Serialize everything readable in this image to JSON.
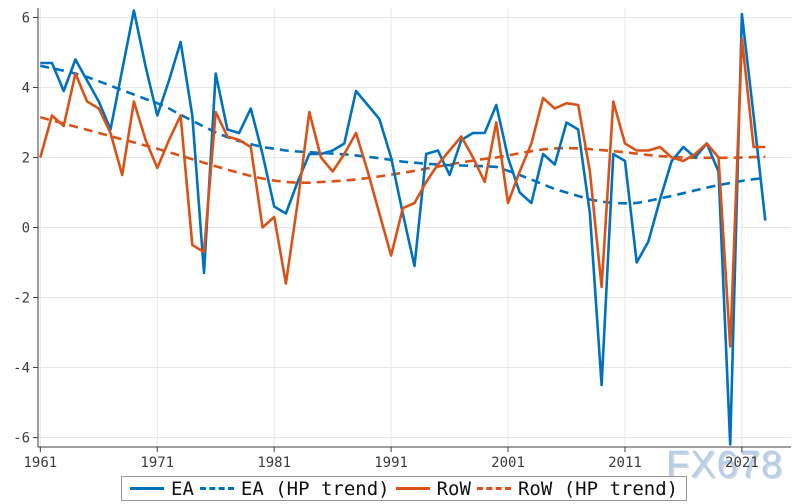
{
  "watermark": {
    "text": "FX678"
  },
  "legend": {
    "items": [
      {
        "label": "EA",
        "style": "solid",
        "color": "#0072BD"
      },
      {
        "label": "EA (HP trend)",
        "style": "dashed",
        "color": "#0072BD"
      },
      {
        "label": "RoW",
        "style": "solid",
        "color": "#D95319"
      },
      {
        "label": "RoW (HP trend)",
        "style": "dashed",
        "color": "#D95319"
      }
    ]
  },
  "colors": {
    "background": "#ffffff",
    "axis": "#3c3c3c",
    "grid": "#e7e7e7",
    "tick_text": "#3c3c3c",
    "legend_border": "#999999",
    "legend_text": "#111111",
    "ea_blue": "#0072BD",
    "row_orange": "#D95319",
    "watermark": "#b9cee6"
  },
  "chart_data": {
    "type": "line",
    "title": "",
    "xlabel": "",
    "ylabel": "",
    "grid": true,
    "legend_position": "bottom",
    "xlim": [
      1960.8,
      2025.2
    ],
    "ylim": [
      -6.27,
      6.27
    ],
    "x_ticks": [
      1961,
      1971,
      1981,
      1991,
      2001,
      2011,
      2021
    ],
    "y_ticks": [
      -6,
      -4,
      -2,
      0,
      2,
      4,
      6
    ],
    "x": [
      1961,
      1962,
      1963,
      1964,
      1965,
      1966,
      1967,
      1968,
      1969,
      1970,
      1971,
      1972,
      1973,
      1974,
      1975,
      1976,
      1977,
      1978,
      1979,
      1980,
      1981,
      1982,
      1983,
      1984,
      1985,
      1986,
      1987,
      1988,
      1989,
      1990,
      1991,
      1992,
      1993,
      1994,
      1995,
      1996,
      1997,
      1998,
      1999,
      2000,
      2001,
      2002,
      2003,
      2004,
      2005,
      2006,
      2007,
      2008,
      2009,
      2010,
      2011,
      2012,
      2013,
      2014,
      2015,
      2016,
      2017,
      2018,
      2019,
      2020,
      2021,
      2022,
      2023
    ],
    "series": [
      {
        "name": "EA",
        "color": "#0072BD",
        "dash": false,
        "values": [
          4.7,
          4.7,
          3.9,
          4.8,
          4.2,
          3.6,
          2.8,
          4.5,
          6.2,
          4.6,
          3.2,
          4.2,
          5.3,
          3.2,
          -1.3,
          4.4,
          2.8,
          2.7,
          3.4,
          2.1,
          0.6,
          0.4,
          1.3,
          2.1,
          2.1,
          2.2,
          2.4,
          3.9,
          3.5,
          3.1,
          2.0,
          0.4,
          -1.1,
          2.1,
          2.2,
          1.5,
          2.5,
          2.7,
          2.7,
          3.5,
          2.0,
          1.0,
          0.7,
          2.1,
          1.8,
          3.0,
          2.8,
          0.4,
          -4.5,
          2.1,
          1.9,
          -1.0,
          -0.4,
          0.8,
          1.9,
          2.3,
          2.0,
          2.4,
          1.6,
          -6.2,
          6.1,
          3.2,
          0.2
        ]
      },
      {
        "name": "EA (HP trend)",
        "color": "#0072BD",
        "dash": true,
        "values": [
          4.62,
          4.55,
          4.48,
          4.4,
          4.3,
          4.18,
          4.05,
          3.92,
          3.8,
          3.67,
          3.55,
          3.4,
          3.22,
          3.05,
          2.88,
          2.72,
          2.58,
          2.47,
          2.38,
          2.3,
          2.25,
          2.2,
          2.17,
          2.15,
          2.13,
          2.11,
          2.09,
          2.06,
          2.02,
          1.98,
          1.93,
          1.88,
          1.85,
          1.82,
          1.8,
          1.78,
          1.77,
          1.76,
          1.75,
          1.73,
          1.62,
          1.5,
          1.37,
          1.23,
          1.1,
          1.0,
          0.9,
          0.8,
          0.74,
          0.7,
          0.69,
          0.7,
          0.76,
          0.83,
          0.9,
          0.98,
          1.06,
          1.14,
          1.21,
          1.27,
          1.33,
          1.38,
          1.42
        ]
      },
      {
        "name": "RoW",
        "color": "#D95319",
        "dash": false,
        "values": [
          2.0,
          3.2,
          2.9,
          4.4,
          3.6,
          3.4,
          2.7,
          1.5,
          3.6,
          2.5,
          1.7,
          2.5,
          3.2,
          -0.5,
          -0.7,
          3.3,
          2.6,
          2.5,
          2.3,
          0.0,
          0.3,
          -1.6,
          0.7,
          3.3,
          2.0,
          1.6,
          2.1,
          2.7,
          1.6,
          0.4,
          -0.8,
          0.55,
          0.7,
          1.3,
          1.8,
          2.2,
          2.6,
          2.0,
          1.3,
          3.0,
          0.7,
          1.6,
          2.4,
          3.7,
          3.4,
          3.55,
          3.5,
          1.6,
          -1.7,
          3.6,
          2.4,
          2.2,
          2.2,
          2.3,
          2.0,
          1.9,
          2.1,
          2.4,
          2.0,
          -3.4,
          5.4,
          2.3,
          2.3
        ]
      },
      {
        "name": "RoW (HP trend)",
        "color": "#D95319",
        "dash": true,
        "values": [
          3.15,
          3.06,
          2.97,
          2.88,
          2.79,
          2.7,
          2.61,
          2.52,
          2.43,
          2.34,
          2.25,
          2.15,
          2.05,
          1.95,
          1.85,
          1.75,
          1.65,
          1.56,
          1.47,
          1.4,
          1.34,
          1.3,
          1.28,
          1.28,
          1.3,
          1.32,
          1.34,
          1.37,
          1.41,
          1.46,
          1.51,
          1.56,
          1.62,
          1.68,
          1.74,
          1.8,
          1.86,
          1.91,
          1.96,
          2.0,
          2.06,
          2.12,
          2.18,
          2.23,
          2.26,
          2.27,
          2.26,
          2.24,
          2.21,
          2.18,
          2.15,
          2.11,
          2.07,
          2.04,
          2.02,
          2.0,
          1.99,
          1.99,
          1.99,
          1.99,
          2.0,
          2.01,
          2.02
        ]
      }
    ]
  }
}
